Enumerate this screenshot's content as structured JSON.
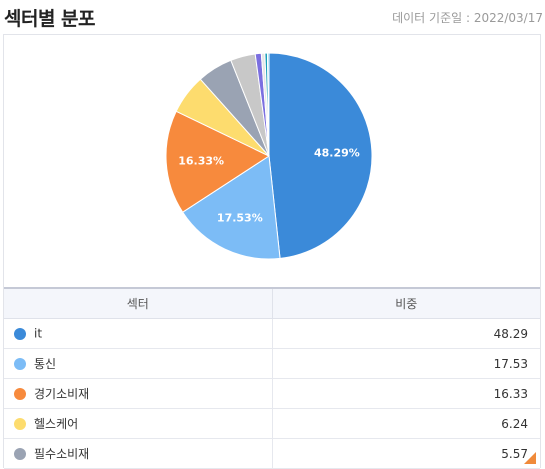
{
  "header": {
    "title": "섹터별 분포",
    "date": "데이터 기준일 : 2022/03/17"
  },
  "table": {
    "col_sector": "섹터",
    "col_weight": "비중",
    "rows": [
      {
        "sector": "it",
        "weight": "48.29",
        "color": "#3b8ad9"
      },
      {
        "sector": "통신",
        "weight": "17.53",
        "color": "#7cbcf6"
      },
      {
        "sector": "경기소비재",
        "weight": "16.33",
        "color": "#f78a3d"
      },
      {
        "sector": "헬스케어",
        "weight": "6.24",
        "color": "#fddc6e"
      },
      {
        "sector": "필수소비재",
        "weight": "5.57",
        "color": "#9aa3b3"
      }
    ]
  },
  "chart_data": {
    "type": "pie",
    "slices": [
      {
        "value": 48.29,
        "color": "#3b8ad9",
        "label": "48.29%"
      },
      {
        "value": 17.53,
        "color": "#7cbcf6",
        "label": "17.53%"
      },
      {
        "value": 16.33,
        "color": "#f78a3d",
        "label": "16.33%"
      },
      {
        "value": 6.24,
        "color": "#fddc6e",
        "label": ""
      },
      {
        "value": 5.57,
        "color": "#9aa3b3",
        "label": ""
      },
      {
        "value": 3.9,
        "color": "#c8c8c8",
        "label": ""
      },
      {
        "value": 0.95,
        "color": "#7b6fe0",
        "label": ""
      },
      {
        "value": 0.55,
        "color": "#e6e6e6",
        "label": ""
      },
      {
        "value": 0.4,
        "color": "#1a9fb8",
        "label": ""
      },
      {
        "value": 0.24,
        "color": "#7ad6f0",
        "label": ""
      }
    ]
  }
}
